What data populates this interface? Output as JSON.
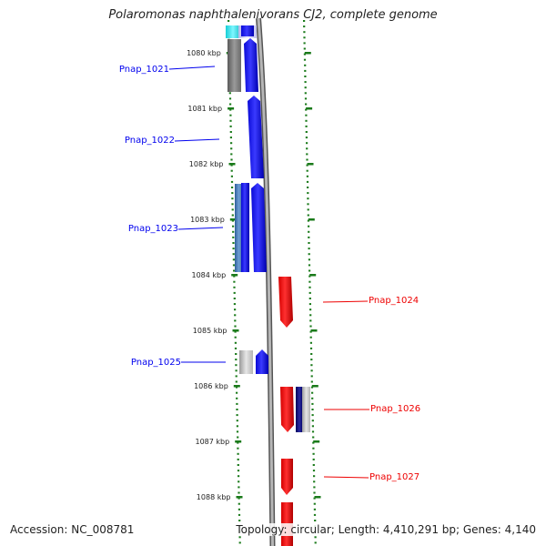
{
  "title": "Polaromonas naphthalenivorans CJ2, complete genome",
  "accession_text": "Accession: NC_008781",
  "topology_text": "Topology: circular; Length: 4,410,291 bp; Genes: 4,140",
  "ticks": [
    {
      "label": "1080 kbp",
      "kbp": 1080
    },
    {
      "label": "1081 kbp",
      "kbp": 1081
    },
    {
      "label": "1082 kbp",
      "kbp": 1082
    },
    {
      "label": "1083 kbp",
      "kbp": 1083
    },
    {
      "label": "1084 kbp",
      "kbp": 1084
    },
    {
      "label": "1085 kbp",
      "kbp": 1085
    },
    {
      "label": "1086 kbp",
      "kbp": 1086
    },
    {
      "label": "1087 kbp",
      "kbp": 1087
    },
    {
      "label": "1088 kbp",
      "kbp": 1088
    }
  ],
  "genes": [
    {
      "name": "Pnap_1021",
      "strand": "+",
      "color": "#0000cc"
    },
    {
      "name": "Pnap_1022",
      "strand": "+",
      "color": "#0000cc"
    },
    {
      "name": "Pnap_1023",
      "strand": "+",
      "color": "#0000cc"
    },
    {
      "name": "Pnap_1024",
      "strand": "-",
      "color": "#cc0000"
    },
    {
      "name": "Pnap_1025",
      "strand": "+",
      "color": "#0000cc"
    },
    {
      "name": "Pnap_1026",
      "strand": "-",
      "color": "#cc0000"
    },
    {
      "name": "Pnap_1027",
      "strand": "-",
      "color": "#cc0000"
    }
  ],
  "colors": {
    "forward_gene": "#0000ee",
    "reverse_gene": "#ee0000",
    "tick": "#1a7a1a",
    "backbone": "#8a8a8a"
  }
}
